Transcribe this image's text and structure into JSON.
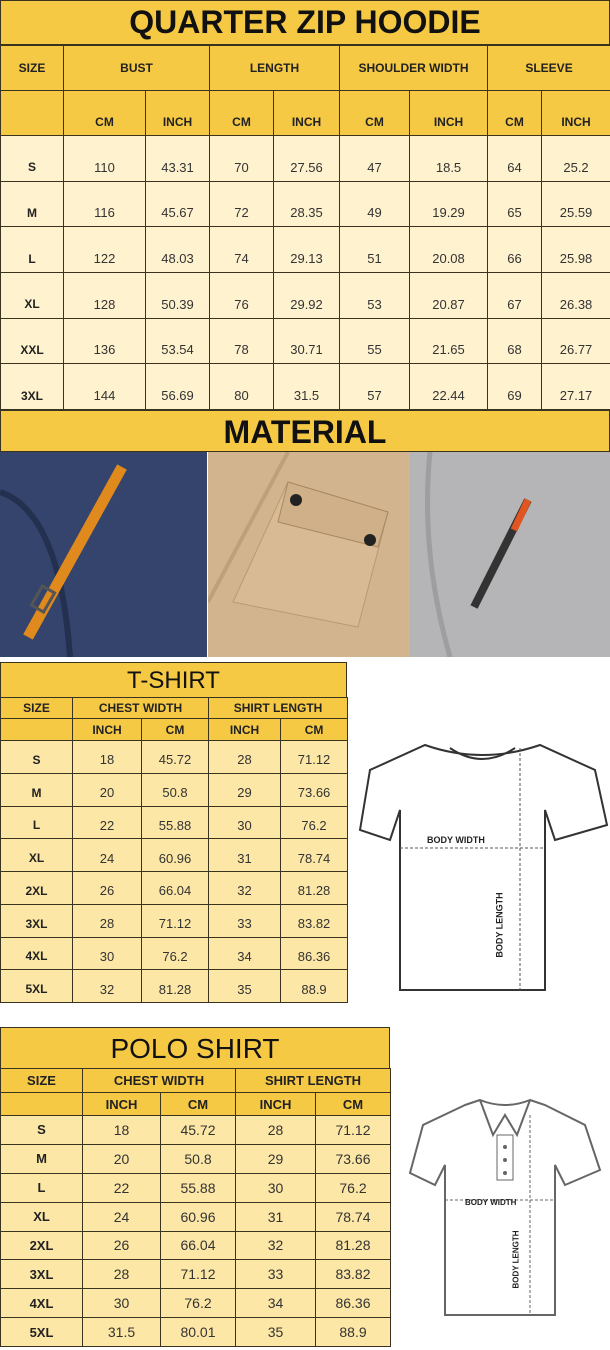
{
  "hoodie": {
    "title": "QUARTER ZIP HOODIE",
    "headers": [
      "SIZE",
      "BUST",
      "LENGTH",
      "SHOULDER WIDTH",
      "SLEEVE"
    ],
    "subheaders": [
      "",
      "CM",
      "INCH",
      "CM",
      "INCH",
      "CM",
      "INCH",
      "CM",
      "INCH"
    ],
    "rows": [
      [
        "S",
        "110",
        "43.31",
        "70",
        "27.56",
        "47",
        "18.5",
        "64",
        "25.2"
      ],
      [
        "M",
        "116",
        "45.67",
        "72",
        "28.35",
        "49",
        "19.29",
        "65",
        "25.59"
      ],
      [
        "L",
        "122",
        "48.03",
        "74",
        "29.13",
        "51",
        "20.08",
        "66",
        "25.98"
      ],
      [
        "XL",
        "128",
        "50.39",
        "76",
        "29.92",
        "53",
        "20.87",
        "67",
        "26.38"
      ],
      [
        "XXL",
        "136",
        "53.54",
        "78",
        "30.71",
        "55",
        "21.65",
        "68",
        "26.77"
      ],
      [
        "3XL",
        "144",
        "56.69",
        "80",
        "31.5",
        "57",
        "22.44",
        "69",
        "27.17"
      ]
    ]
  },
  "material": {
    "title": "MATERIAL",
    "photos": [
      "navy-pocket-with-orange-pull",
      "khaki-flap-pocket",
      "grey-sleeve-zip-pocket"
    ]
  },
  "tshirt": {
    "title": "T-SHIRT",
    "headers": [
      "SIZE",
      "CHEST WIDTH",
      "SHIRT LENGTH"
    ],
    "subheaders": [
      "",
      "INCH",
      "CM",
      "INCH",
      "CM"
    ],
    "rows": [
      [
        "S",
        "18",
        "45.72",
        "28",
        "71.12"
      ],
      [
        "M",
        "20",
        "50.8",
        "29",
        "73.66"
      ],
      [
        "L",
        "22",
        "55.88",
        "30",
        "76.2"
      ],
      [
        "XL",
        "24",
        "60.96",
        "31",
        "78.74"
      ],
      [
        "2XL",
        "26",
        "66.04",
        "32",
        "81.28"
      ],
      [
        "3XL",
        "28",
        "71.12",
        "33",
        "83.82"
      ],
      [
        "4XL",
        "30",
        "76.2",
        "34",
        "86.36"
      ],
      [
        "5XL",
        "32",
        "81.28",
        "35",
        "88.9"
      ]
    ],
    "diagram": {
      "width_label": "BODY WIDTH",
      "length_label": "BODY LENGTH"
    }
  },
  "polo": {
    "title": "POLO SHIRT",
    "headers": [
      "SIZE",
      "CHEST WIDTH",
      "SHIRT LENGTH"
    ],
    "subheaders": [
      "",
      "INCH",
      "CM",
      "INCH",
      "CM"
    ],
    "rows": [
      [
        "S",
        "18",
        "45.72",
        "28",
        "71.12"
      ],
      [
        "M",
        "20",
        "50.8",
        "29",
        "73.66"
      ],
      [
        "L",
        "22",
        "55.88",
        "30",
        "76.2"
      ],
      [
        "XL",
        "24",
        "60.96",
        "31",
        "78.74"
      ],
      [
        "2XL",
        "26",
        "66.04",
        "32",
        "81.28"
      ],
      [
        "3XL",
        "28",
        "71.12",
        "33",
        "83.82"
      ],
      [
        "4XL",
        "30",
        "76.2",
        "34",
        "86.36"
      ],
      [
        "5XL",
        "31.5",
        "80.01",
        "35",
        "88.9"
      ]
    ],
    "diagram": {
      "width_label": "BODY WIDTH",
      "length_label": "BODY LENGTH"
    }
  },
  "colors": {
    "header_yellow": "#f6c944",
    "cell_cream": "#fff2cf",
    "cell_yellow": "#fde7a6"
  }
}
